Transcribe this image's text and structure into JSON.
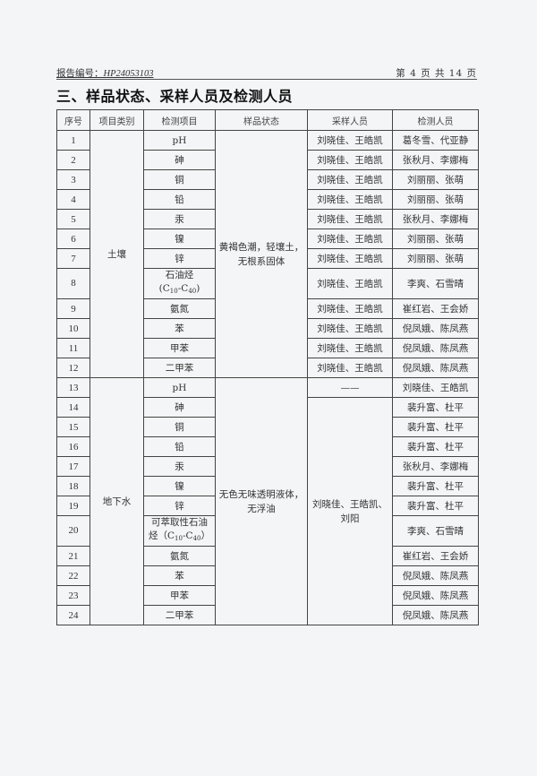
{
  "header": {
    "report_no_label": "报告编号：",
    "report_no": "HP24053103",
    "page_info": "第 4 页 共 14 页"
  },
  "section_title": "三、样品状态、采样人员及检测人员",
  "table": {
    "columns": [
      "序号",
      "项目类别",
      "检测项目",
      "样品状态",
      "采样人员",
      "检测人员"
    ],
    "groups": [
      {
        "category": "土壤",
        "sample_state": [
          "黄褐色潮，轻壤土，",
          "无根系固体"
        ],
        "rows": [
          {
            "no": "1",
            "item": "pH",
            "sampler": "刘晓佳、王皓凯",
            "tester": "葛冬雪、代亚静"
          },
          {
            "no": "2",
            "item": "砷",
            "sampler": "刘晓佳、王皓凯",
            "tester": "张秋月、李娜梅"
          },
          {
            "no": "3",
            "item": "铜",
            "sampler": "刘晓佳、王皓凯",
            "tester": "刘丽丽、张萌"
          },
          {
            "no": "4",
            "item": "铅",
            "sampler": "刘晓佳、王皓凯",
            "tester": "刘丽丽、张萌"
          },
          {
            "no": "5",
            "item": "汞",
            "sampler": "刘晓佳、王皓凯",
            "tester": "张秋月、李娜梅"
          },
          {
            "no": "6",
            "item": "镍",
            "sampler": "刘晓佳、王皓凯",
            "tester": "刘丽丽、张萌"
          },
          {
            "no": "7",
            "item": "锌",
            "sampler": "刘晓佳、王皓凯",
            "tester": "刘丽丽、张萌"
          },
          {
            "no": "8",
            "item": "石油烃",
            "formula": {
              "open": "(C",
              "sub1": "10",
              "mid": "-C",
              "sub2": "40",
              "close": ")"
            },
            "sampler": "刘晓佳、王皓凯",
            "tester": "李爽、石雪晴"
          },
          {
            "no": "9",
            "item": "氨氮",
            "sampler": "刘晓佳、王皓凯",
            "tester": "崔红岩、王会娇"
          },
          {
            "no": "10",
            "item": "苯",
            "sampler": "刘晓佳、王皓凯",
            "tester": "倪凤娥、陈凤燕"
          },
          {
            "no": "11",
            "item": "甲苯",
            "sampler": "刘晓佳、王皓凯",
            "tester": "倪凤娥、陈凤燕"
          },
          {
            "no": "12",
            "item": "二甲苯",
            "sampler": "刘晓佳、王皓凯",
            "tester": "倪凤娥、陈凤燕"
          }
        ]
      },
      {
        "category": "地下水",
        "sample_state": [
          "无色无味透明液体，",
          "无浮油"
        ],
        "first_row_sampler": "——",
        "sampler_merged": [
          "刘晓佳、王皓凯、",
          "刘阳"
        ],
        "rows": [
          {
            "no": "13",
            "item": "pH",
            "tester": "刘晓佳、王皓凯"
          },
          {
            "no": "14",
            "item": "砷",
            "tester": "裴升富、杜平"
          },
          {
            "no": "15",
            "item": "铜",
            "tester": "裴升富、杜平"
          },
          {
            "no": "16",
            "item": "铅",
            "tester": "裴升富、杜平"
          },
          {
            "no": "17",
            "item": "汞",
            "tester": "张秋月、李娜梅"
          },
          {
            "no": "18",
            "item": "镍",
            "tester": "裴升富、杜平"
          },
          {
            "no": "19",
            "item": "锌",
            "tester": "裴升富、杜平"
          },
          {
            "no": "20",
            "item": "可萃取性石油",
            "item2": "烃",
            "formula": {
              "open": "（C",
              "sub1": "10",
              "mid": "-C",
              "sub2": "40",
              "close": "）"
            },
            "tester": "李爽、石雪晴"
          },
          {
            "no": "21",
            "item": "氨氮",
            "tester": "崔红岩、王会娇"
          },
          {
            "no": "22",
            "item": "苯",
            "tester": "倪凤娥、陈凤燕"
          },
          {
            "no": "23",
            "item": "甲苯",
            "tester": "倪凤娥、陈凤燕"
          },
          {
            "no": "24",
            "item": "二甲苯",
            "tester": "倪凤娥、陈凤燕"
          }
        ]
      }
    ]
  }
}
